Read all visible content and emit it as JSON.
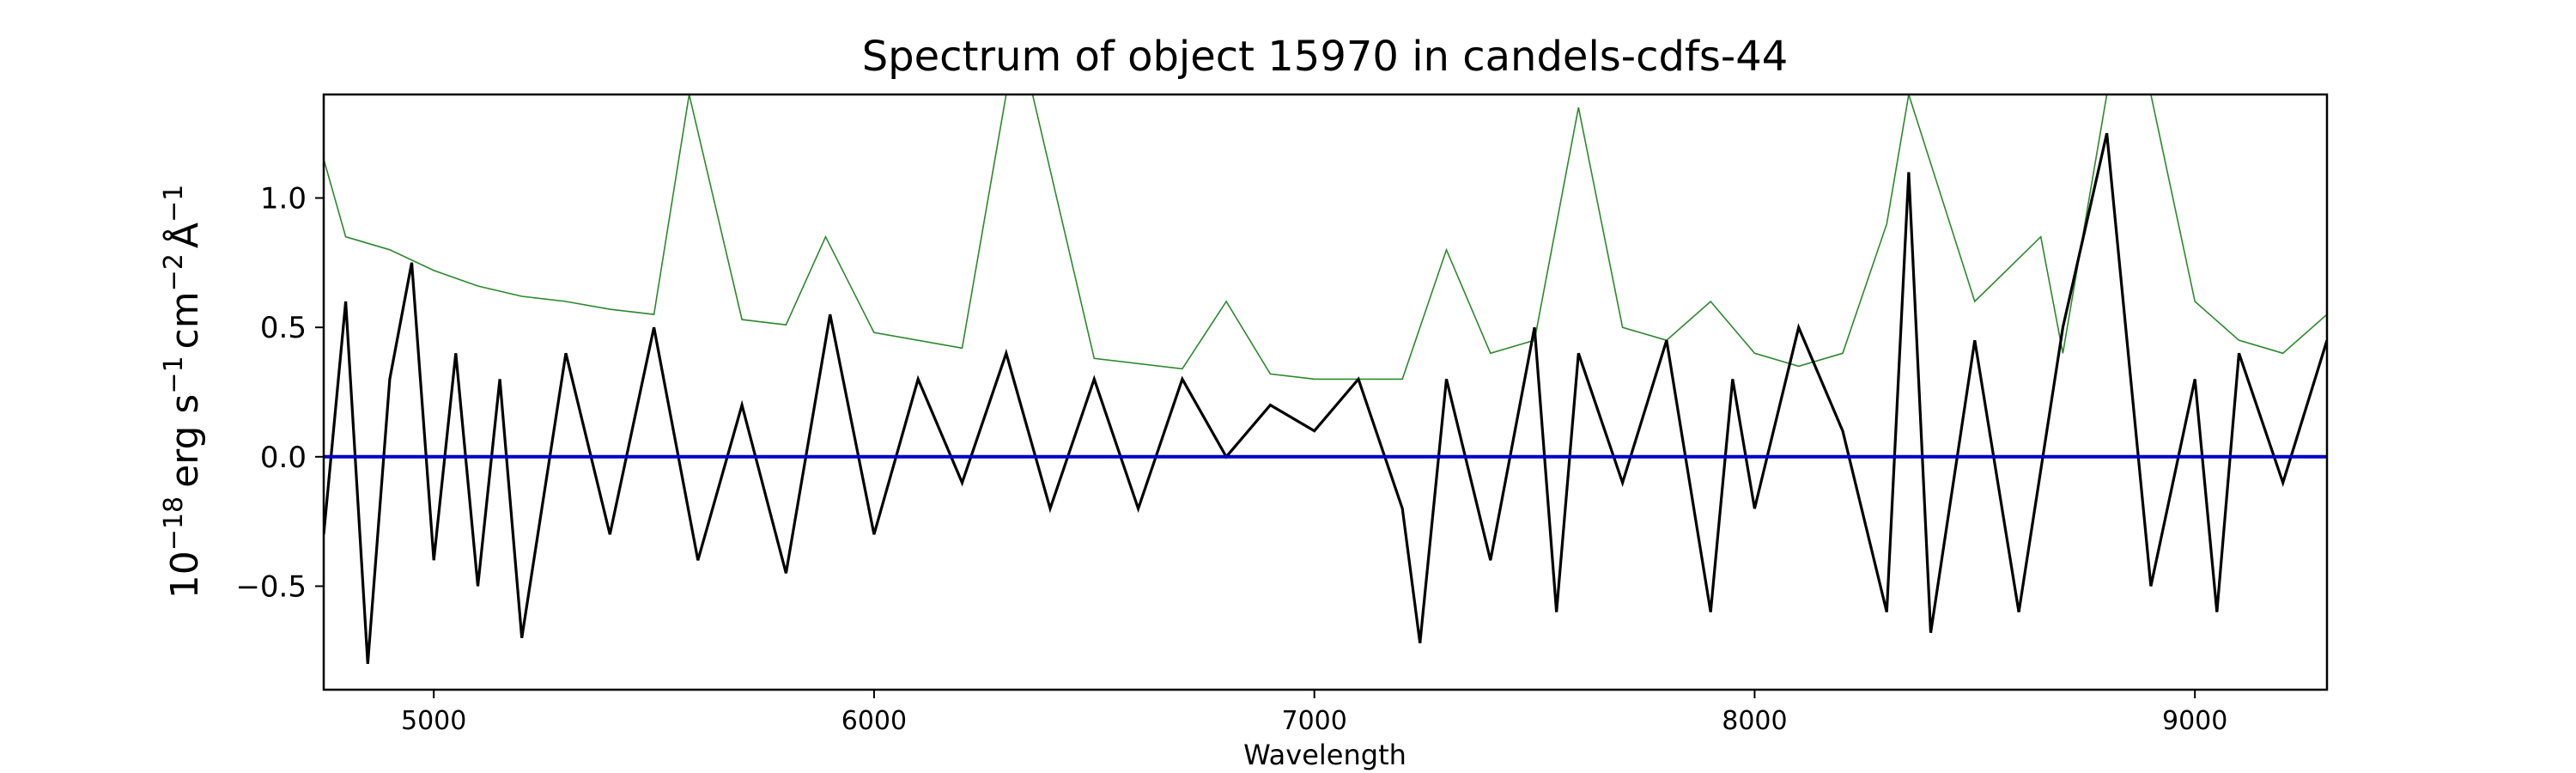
{
  "chart_data": {
    "type": "line",
    "title": "Spectrum of object 15970 in candels-cdfs-44",
    "xlabel": "Wavelength",
    "ylabel": "10^-18 erg s^-1 cm^-2 Å^-1",
    "ylabel_parts": {
      "base": "10",
      "exp1": "−18",
      "erg": "erg s",
      "exp2": "−1",
      "cm": "cm",
      "exp3": "−2",
      "ang": "Å",
      "exp4": "−1"
    },
    "xlim": [
      4750,
      9300
    ],
    "ylim": [
      -0.9,
      1.4
    ],
    "xticks": [
      5000,
      6000,
      7000,
      8000,
      9000
    ],
    "xtick_labels": [
      "5000",
      "6000",
      "7000",
      "8000",
      "9000"
    ],
    "yticks": [
      -0.5,
      0.0,
      0.5,
      1.0
    ],
    "ytick_labels": [
      "−0.5",
      "0.0",
      "0.5",
      "1.0"
    ],
    "grid": false,
    "series": [
      {
        "key": "flux",
        "color": "#000000",
        "x": [
          4750,
          4800,
          4850,
          4900,
          4950,
          5000,
          5050,
          5100,
          5150,
          5200,
          5300,
          5400,
          5500,
          5600,
          5700,
          5800,
          5900,
          6000,
          6100,
          6200,
          6300,
          6400,
          6500,
          6600,
          6700,
          6800,
          6900,
          7000,
          7100,
          7200,
          7240,
          7300,
          7400,
          7500,
          7550,
          7600,
          7700,
          7800,
          7900,
          7950,
          8000,
          8100,
          8200,
          8300,
          8350,
          8400,
          8500,
          8600,
          8700,
          8800,
          8900,
          9000,
          9050,
          9100,
          9200,
          9300
        ],
        "y": [
          -0.3,
          0.6,
          -0.8,
          0.3,
          0.75,
          -0.4,
          0.4,
          -0.5,
          0.3,
          -0.7,
          0.4,
          -0.3,
          0.5,
          -0.4,
          0.2,
          -0.45,
          0.55,
          -0.3,
          0.3,
          -0.1,
          0.4,
          -0.2,
          0.3,
          -0.2,
          0.3,
          0.0,
          0.2,
          0.1,
          0.3,
          -0.2,
          -0.72,
          0.3,
          -0.4,
          0.5,
          -0.6,
          0.4,
          -0.1,
          0.45,
          -0.6,
          0.3,
          -0.2,
          0.5,
          0.1,
          -0.6,
          1.1,
          -0.68,
          0.45,
          -0.6,
          0.5,
          1.25,
          -0.5,
          0.3,
          -0.6,
          0.4,
          -0.1,
          0.45
        ]
      },
      {
        "key": "error",
        "color": "#2a8a2a",
        "x": [
          4750,
          4800,
          4900,
          5000,
          5100,
          5200,
          5300,
          5400,
          5500,
          5580,
          5700,
          5800,
          5890,
          6000,
          6200,
          6300,
          6360,
          6500,
          6700,
          6800,
          6900,
          7000,
          7100,
          7200,
          7300,
          7400,
          7500,
          7600,
          7700,
          7800,
          7900,
          8000,
          8100,
          8200,
          8300,
          8350,
          8500,
          8650,
          8700,
          8800,
          8900,
          9000,
          9100,
          9200,
          9300
        ],
        "y": [
          1.15,
          0.85,
          0.8,
          0.72,
          0.66,
          0.62,
          0.6,
          0.57,
          0.55,
          1.4,
          0.53,
          0.51,
          0.85,
          0.48,
          0.42,
          1.4,
          1.4,
          0.38,
          0.34,
          0.6,
          0.32,
          0.3,
          0.3,
          0.3,
          0.8,
          0.4,
          0.45,
          1.35,
          0.5,
          0.45,
          0.6,
          0.4,
          0.35,
          0.4,
          0.9,
          1.4,
          0.6,
          0.85,
          0.4,
          1.4,
          1.4,
          0.6,
          0.45,
          0.4,
          0.55
        ]
      },
      {
        "key": "zero",
        "color": "#0000cc",
        "x": [
          4750,
          9300
        ],
        "y": [
          0.0,
          0.0
        ]
      }
    ]
  }
}
